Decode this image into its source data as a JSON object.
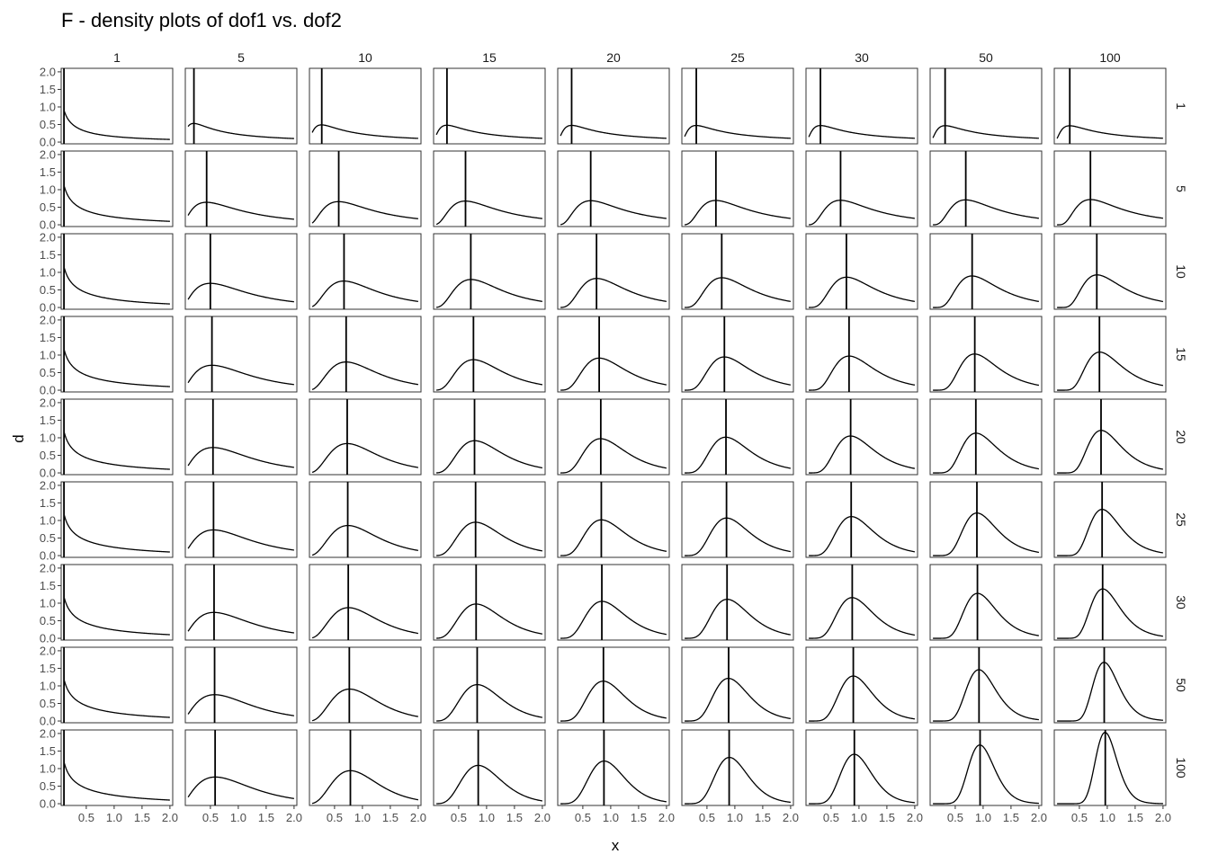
{
  "chart_data": {
    "type": "line",
    "title": "F - density plots of dof1 vs. dof2",
    "xlabel": "x",
    "ylabel": "d",
    "facet_columns_dof1": [
      "1",
      "5",
      "10",
      "15",
      "20",
      "25",
      "30",
      "50",
      "100"
    ],
    "facet_rows_dof2": [
      "1",
      "5",
      "10",
      "15",
      "20",
      "25",
      "30",
      "50",
      "100"
    ],
    "x_ticks": [
      "0.5",
      "1.0",
      "1.5",
      "2.0"
    ],
    "y_ticks": [
      "0.0",
      "0.5",
      "1.0",
      "1.5",
      "2.0"
    ],
    "xlim": [
      0.05,
      2.05
    ],
    "ylim": [
      -0.05,
      2.1
    ],
    "x_range_plotted": [
      0.1,
      2.0
    ],
    "series": "F(x; dof1, dof2) density for each facet",
    "vertical_line": "x at maximum density (mode) in each panel",
    "grid": false
  }
}
